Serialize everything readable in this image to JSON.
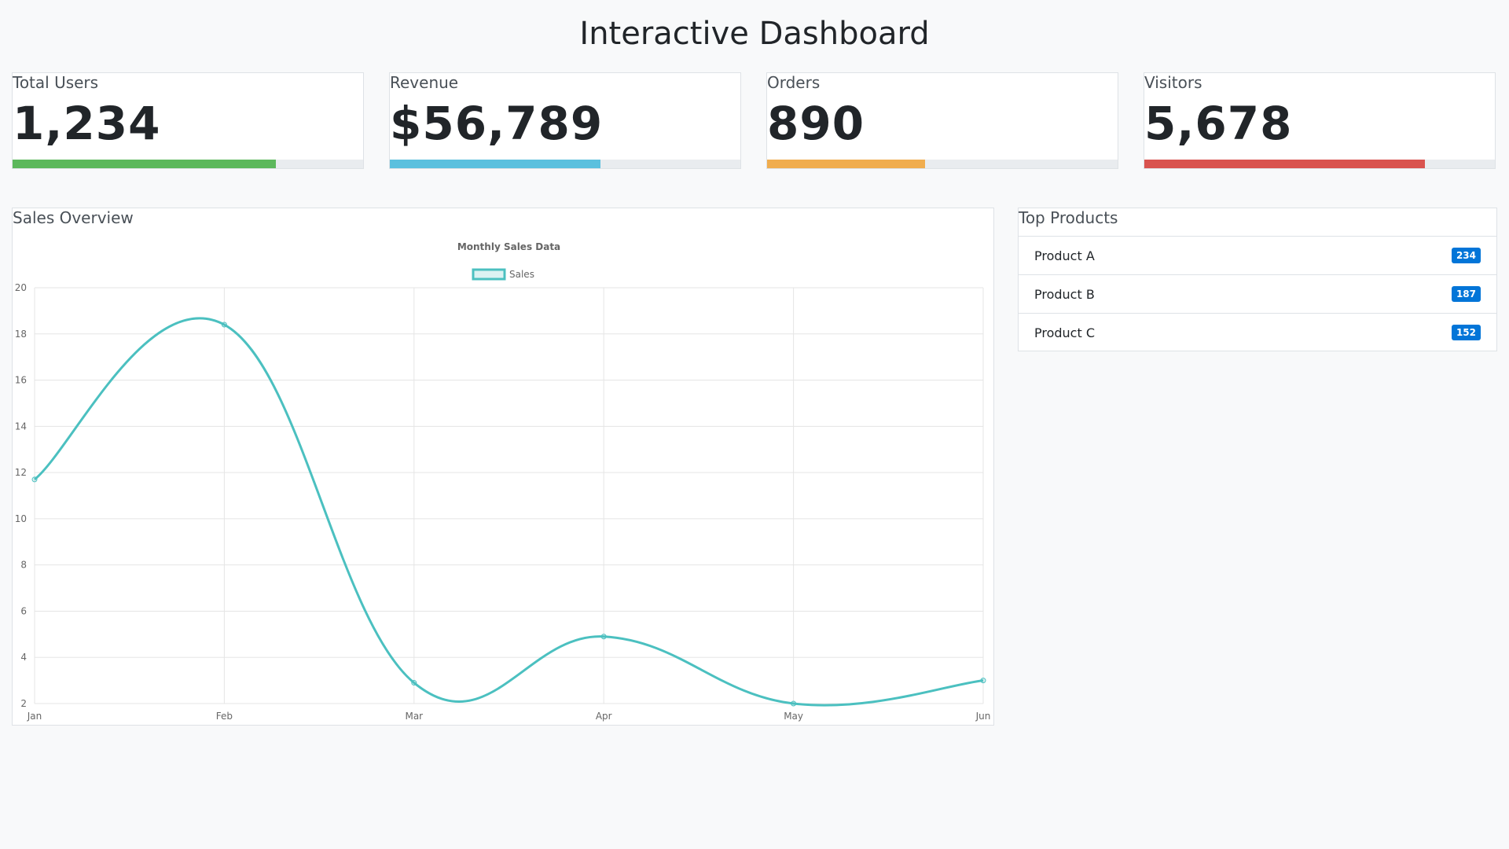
{
  "page": {
    "title": "Interactive Dashboard"
  },
  "stats": [
    {
      "label": "Total Users",
      "value": "1,234",
      "progress": 75,
      "color": "#5cb85c"
    },
    {
      "label": "Revenue",
      "value": "$56,789",
      "progress": 60,
      "color": "#5bc0de"
    },
    {
      "label": "Orders",
      "value": "890",
      "progress": 45,
      "color": "#f0ad4e"
    },
    {
      "label": "Visitors",
      "value": "5,678",
      "progress": 80,
      "color": "#d9534f"
    }
  ],
  "sales_card": {
    "title": "Sales Overview"
  },
  "chart_data": {
    "type": "line",
    "title": "Monthly Sales Data",
    "categories": [
      "Jan",
      "Feb",
      "Mar",
      "Apr",
      "May",
      "Jun"
    ],
    "series": [
      {
        "name": "Sales",
        "values": [
          11.7,
          18.4,
          2.9,
          4.9,
          2.0,
          3.0
        ],
        "color": "#4bc0c0"
      }
    ],
    "ylim": [
      2,
      20
    ],
    "yticks": [
      2,
      4,
      6,
      8,
      10,
      12,
      14,
      16,
      18,
      20
    ],
    "grid": true,
    "legend_position": "top"
  },
  "products_card": {
    "title": "Top Products",
    "items": [
      {
        "name": "Product A",
        "count": "234"
      },
      {
        "name": "Product B",
        "count": "187"
      },
      {
        "name": "Product C",
        "count": "152"
      }
    ]
  }
}
